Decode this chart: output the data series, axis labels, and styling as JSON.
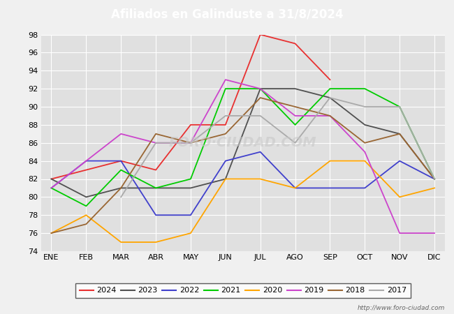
{
  "title": "Afiliados en Galinduste a 31/8/2024",
  "title_color": "white",
  "header_color": "#4a86c8",
  "xlabel": "",
  "ylabel": "",
  "ylim": [
    74,
    98
  ],
  "yticks": [
    74,
    76,
    78,
    80,
    82,
    84,
    86,
    88,
    90,
    92,
    94,
    96,
    98
  ],
  "months": [
    "ENE",
    "FEB",
    "MAR",
    "ABR",
    "MAY",
    "JUN",
    "JUL",
    "AGO",
    "SEP",
    "OCT",
    "NOV",
    "DIC"
  ],
  "background_color": "#f0f0f0",
  "plot_bg_color": "#e0e0e0",
  "watermark": "http://www.foro-ciudad.com",
  "series": [
    {
      "label": "2024",
      "color": "#e83030",
      "data": [
        82,
        83,
        84,
        83,
        88,
        88,
        98,
        97,
        93,
        null,
        null,
        null
      ]
    },
    {
      "label": "2023",
      "color": "#505050",
      "data": [
        82,
        80,
        81,
        81,
        81,
        82,
        92,
        92,
        91,
        88,
        87,
        82
      ]
    },
    {
      "label": "2022",
      "color": "#4040cc",
      "data": [
        81,
        84,
        84,
        78,
        78,
        84,
        85,
        81,
        81,
        81,
        84,
        82
      ]
    },
    {
      "label": "2021",
      "color": "#00cc00",
      "data": [
        81,
        79,
        83,
        81,
        82,
        92,
        92,
        88,
        92,
        92,
        90,
        82
      ]
    },
    {
      "label": "2020",
      "color": "#ffa500",
      "data": [
        76,
        78,
        75,
        75,
        76,
        82,
        82,
        81,
        84,
        84,
        80,
        81
      ]
    },
    {
      "label": "2019",
      "color": "#cc44cc",
      "data": [
        81,
        84,
        87,
        86,
        86,
        93,
        92,
        89,
        89,
        85,
        76,
        76
      ]
    },
    {
      "label": "2018",
      "color": "#996633",
      "data": [
        76,
        77,
        81,
        87,
        86,
        87,
        91,
        90,
        89,
        86,
        87,
        82
      ]
    },
    {
      "label": "2017",
      "color": "#aaaaaa",
      "data": [
        null,
        null,
        80,
        86,
        86,
        89,
        89,
        86,
        91,
        90,
        90,
        82
      ]
    }
  ]
}
